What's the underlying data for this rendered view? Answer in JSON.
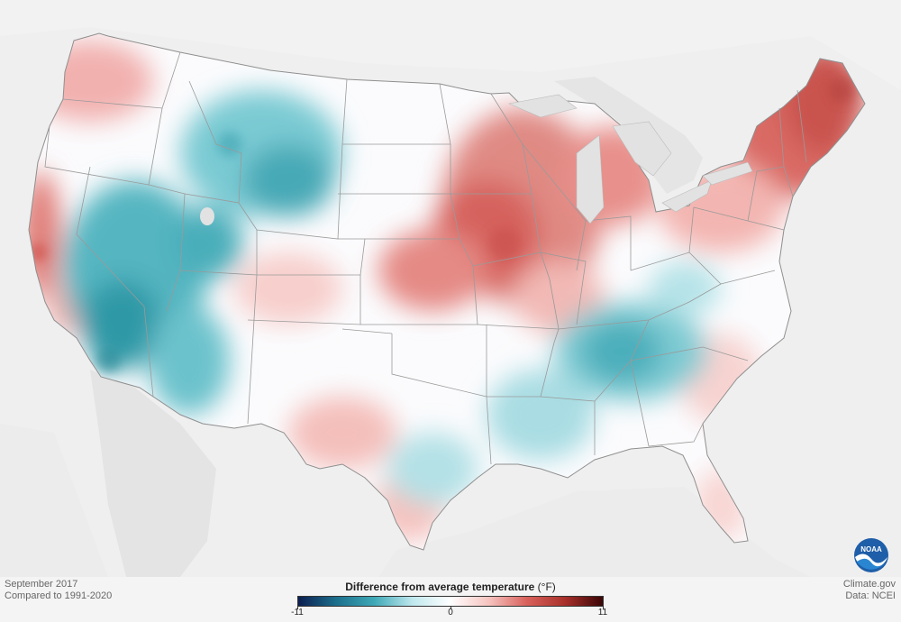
{
  "map": {
    "period": "September 2017",
    "baseline": "Compared to 1991-2020",
    "credit_site": "Climate.gov",
    "credit_data": "Data: NCEI",
    "logo_text": "NOAA"
  },
  "legend": {
    "title": "Difference from average temperature",
    "unit": "(°F)",
    "min": -11,
    "mid": 0,
    "max": 11,
    "min_label": "-11",
    "mid_label": "0",
    "max_label": "11",
    "colors": [
      "#0b1e4f",
      "#1c6f8c",
      "#3fa9b7",
      "#bfe8ee",
      "#ffffff",
      "#f6c4c0",
      "#d9615c",
      "#a9302b",
      "#3a0606"
    ]
  },
  "colors": {
    "background": "#f4f4f4",
    "water": "#e2e2e2",
    "land_outside": "#ebebeb",
    "border": "#999999"
  }
}
